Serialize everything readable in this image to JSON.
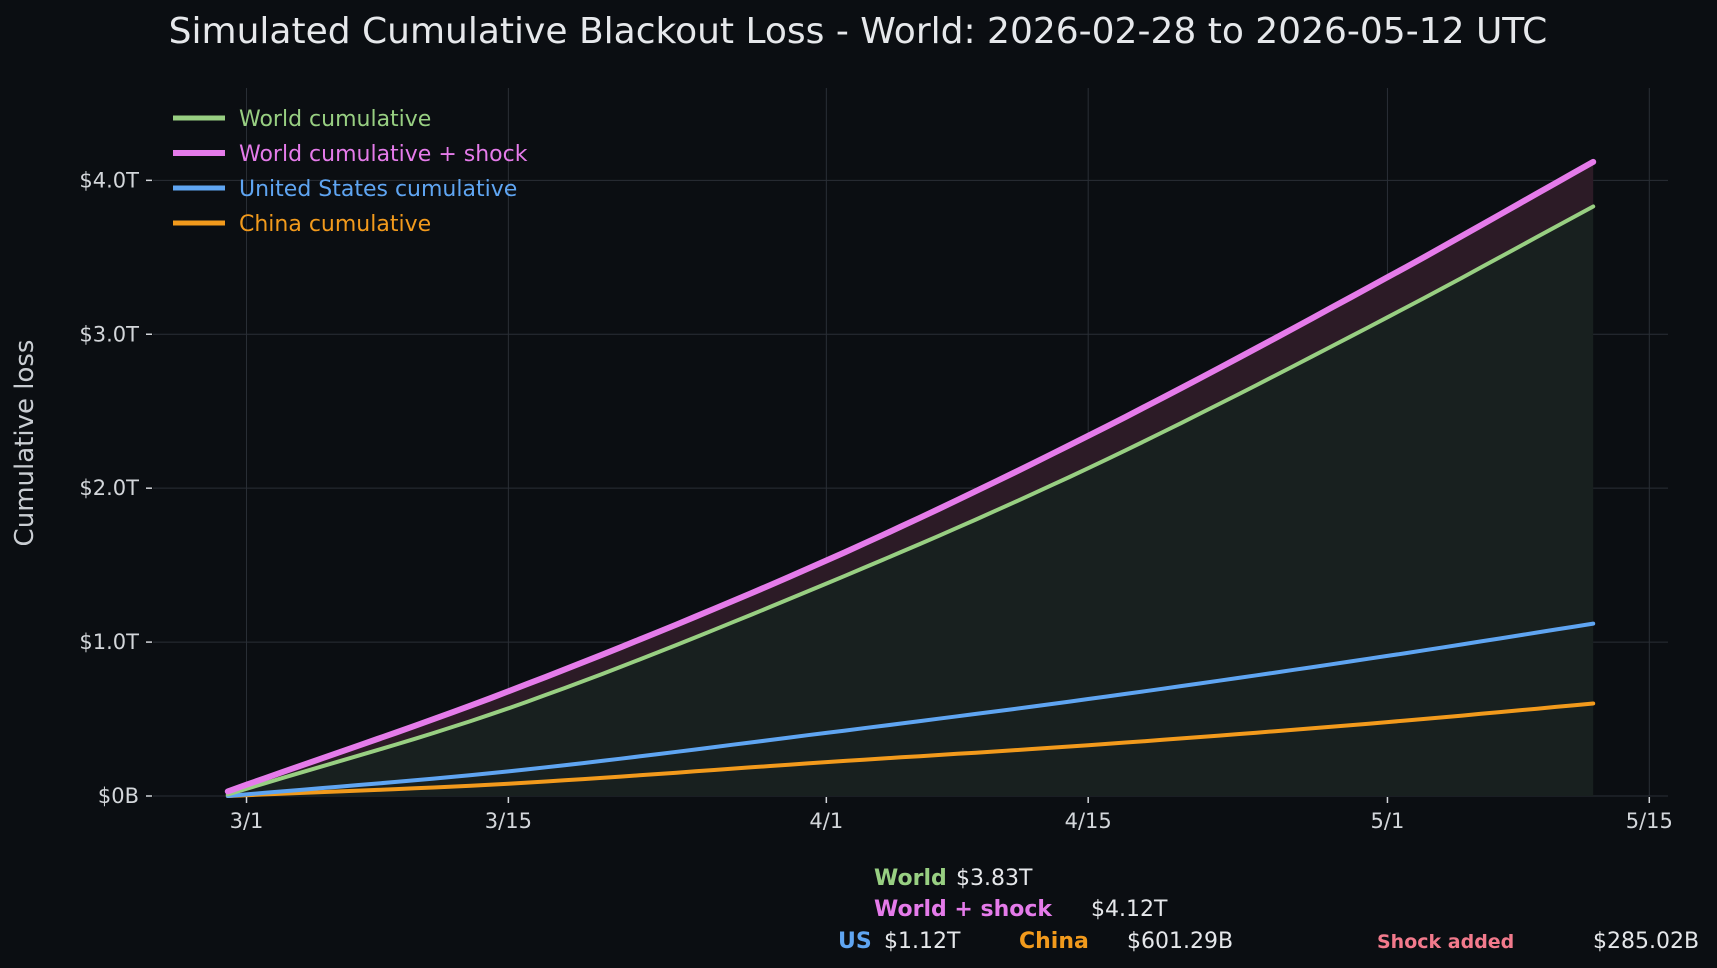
{
  "chart_data": {
    "type": "line",
    "title": "Simulated Cumulative Blackout Loss - World: 2026-02-28 to 2026-05-12 UTC",
    "ylabel": "Cumulative loss",
    "xlabel": "",
    "x_start": "2026-02-28",
    "x_end": "2026-05-12",
    "xlim": [
      "2026-02-24",
      "2026-05-16"
    ],
    "ylim": [
      0,
      4.6
    ],
    "y_unit": "trillion USD",
    "x_ticks": [
      {
        "date": "2026-03-01",
        "label": "3/1"
      },
      {
        "date": "2026-03-15",
        "label": "3/15"
      },
      {
        "date": "2026-04-01",
        "label": "4/1"
      },
      {
        "date": "2026-04-15",
        "label": "4/15"
      },
      {
        "date": "2026-05-01",
        "label": "5/1"
      },
      {
        "date": "2026-05-15",
        "label": "5/15"
      }
    ],
    "y_ticks": [
      {
        "value": 0,
        "label": "$0B"
      },
      {
        "value": 1,
        "label": "$1.0T"
      },
      {
        "value": 2,
        "label": "$2.0T"
      },
      {
        "value": 3,
        "label": "$3.0T"
      },
      {
        "value": 4,
        "label": "$4.0T"
      }
    ],
    "grid": true,
    "legend_position": "top-left",
    "series": [
      {
        "name": "World cumulative",
        "color": "#98cf82",
        "fill": true,
        "points": [
          {
            "x": "2026-02-28",
            "y": 0.01
          },
          {
            "x": "2026-03-15",
            "y": 0.57
          },
          {
            "x": "2026-04-01",
            "y": 1.38
          },
          {
            "x": "2026-04-15",
            "y": 2.13
          },
          {
            "x": "2026-05-01",
            "y": 3.11
          },
          {
            "x": "2026-05-12",
            "y": 3.83
          }
        ]
      },
      {
        "name": "World cumulative + shock",
        "color": "#e57bea",
        "fill": false,
        "points": [
          {
            "x": "2026-02-28",
            "y": 0.03
          },
          {
            "x": "2026-03-15",
            "y": 0.68
          },
          {
            "x": "2026-04-01",
            "y": 1.53
          },
          {
            "x": "2026-04-15",
            "y": 2.34
          },
          {
            "x": "2026-05-01",
            "y": 3.37
          },
          {
            "x": "2026-05-12",
            "y": 4.12
          }
        ]
      },
      {
        "name": "United States cumulative",
        "color": "#5fa5f2",
        "fill": false,
        "points": [
          {
            "x": "2026-02-28",
            "y": 0.0
          },
          {
            "x": "2026-03-15",
            "y": 0.16
          },
          {
            "x": "2026-04-01",
            "y": 0.41
          },
          {
            "x": "2026-04-15",
            "y": 0.63
          },
          {
            "x": "2026-05-01",
            "y": 0.91
          },
          {
            "x": "2026-05-12",
            "y": 1.12
          }
        ]
      },
      {
        "name": "China cumulative",
        "color": "#f29a1c",
        "fill": false,
        "points": [
          {
            "x": "2026-02-28",
            "y": 0.0
          },
          {
            "x": "2026-03-15",
            "y": 0.08
          },
          {
            "x": "2026-04-01",
            "y": 0.22
          },
          {
            "x": "2026-04-15",
            "y": 0.33
          },
          {
            "x": "2026-05-01",
            "y": 0.48
          },
          {
            "x": "2026-05-12",
            "y": 0.601
          }
        ]
      }
    ],
    "shock_band_color": "#2c1b26",
    "world_fill_color": "#18201f"
  },
  "summary": {
    "world_label": "World",
    "world_value": "$3.83T",
    "world_shock_label": "World + shock",
    "world_shock_value": "$4.12T",
    "us_label": "US",
    "us_value": "$1.12T",
    "china_label": "China",
    "china_value": "$601.29B",
    "shock_label": "Shock added",
    "shock_value": "$285.02B",
    "shock_color": "#f27a8c"
  }
}
